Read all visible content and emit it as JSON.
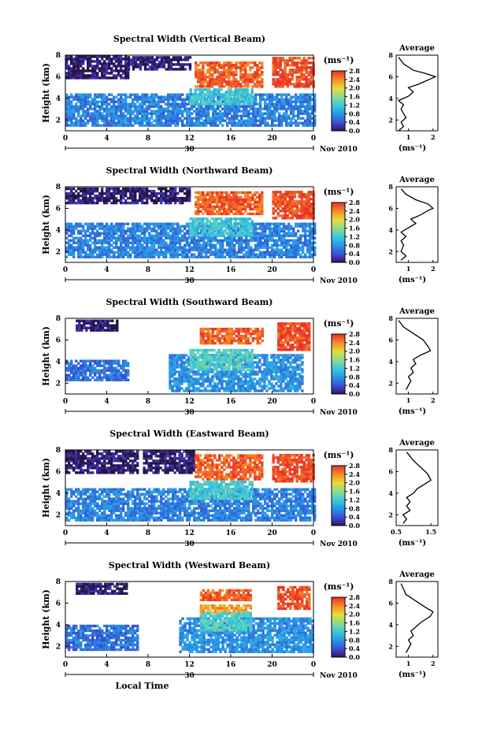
{
  "figure": {
    "xlabel": "Local Time",
    "date_day": "30",
    "date_month": "Nov 2010",
    "ylabel": "Height (km)",
    "colorbar_unit": "(ms⁻¹)",
    "avg_title": "Average",
    "avg_xlabel": "(ms⁻¹)"
  },
  "chart_data": [
    {
      "type": "heatmap",
      "title": "Spectral Width (Vertical Beam)",
      "xlabel": "",
      "ylabel": "Height (km)",
      "x_ticks": [
        "0",
        "4",
        "8",
        "12",
        "16",
        "20",
        "0"
      ],
      "y_ticks": [
        "2",
        "4",
        "6",
        "8"
      ],
      "xlim": [
        0,
        24
      ],
      "ylim": [
        1,
        8
      ],
      "colorbar": {
        "ticks": [
          "0.0",
          "0.4",
          "0.8",
          "1.2",
          "1.6",
          "2.0",
          "2.4",
          "2.8"
        ],
        "range": [
          0,
          2.8
        ]
      },
      "regions": [
        {
          "t0": 0,
          "t1": 6,
          "h0": 5.8,
          "h1": 7.8,
          "v": 0.05
        },
        {
          "t0": 6,
          "t1": 12,
          "h0": 6.6,
          "h1": 7.8,
          "v": 0.05
        },
        {
          "t0": 12.5,
          "t1": 19,
          "h0": 5.0,
          "h1": 7.3,
          "v": 2.6
        },
        {
          "t0": 20,
          "t1": 24,
          "h0": 5.0,
          "h1": 7.7,
          "v": 2.7
        },
        {
          "t0": 0,
          "t1": 24,
          "h0": 1.4,
          "h1": 4.4,
          "v": 0.7
        },
        {
          "t0": 12,
          "t1": 18,
          "h0": 3.4,
          "h1": 4.8,
          "v": 1.2
        }
      ]
    },
    {
      "type": "heatmap",
      "title": "Spectral Width (Northward Beam)",
      "xlabel": "",
      "ylabel": "Height (km)",
      "x_ticks": [
        "0",
        "4",
        "8",
        "12",
        "16",
        "20",
        "0"
      ],
      "y_ticks": [
        "2",
        "4",
        "6",
        "8"
      ],
      "xlim": [
        0,
        24
      ],
      "ylim": [
        1,
        8
      ],
      "colorbar": {
        "ticks": [
          "0.0",
          "0.4",
          "0.8",
          "1.2",
          "1.6",
          "2.0",
          "2.4",
          "2.8"
        ],
        "range": [
          0,
          2.8
        ]
      },
      "regions": [
        {
          "t0": 0,
          "t1": 12,
          "h0": 6.4,
          "h1": 7.8,
          "v": 0.05
        },
        {
          "t0": 12.5,
          "t1": 19,
          "h0": 5.4,
          "h1": 7.4,
          "v": 2.6
        },
        {
          "t0": 20,
          "t1": 24,
          "h0": 5.0,
          "h1": 7.6,
          "v": 2.7
        },
        {
          "t0": 0,
          "t1": 24,
          "h0": 1.4,
          "h1": 4.6,
          "v": 0.7
        },
        {
          "t0": 12,
          "t1": 18,
          "h0": 3.4,
          "h1": 5.0,
          "v": 1.2
        }
      ]
    },
    {
      "type": "heatmap",
      "title": "Spectral Width (Southward Beam)",
      "xlabel": "",
      "ylabel": "Height (km)",
      "x_ticks": [
        "0",
        "4",
        "8",
        "12",
        "16",
        "20",
        "0"
      ],
      "y_ticks": [
        "2",
        "4",
        "6",
        "8"
      ],
      "xlim": [
        0,
        24
      ],
      "ylim": [
        1,
        8
      ],
      "colorbar": {
        "ticks": [
          "0.0",
          "0.4",
          "0.8",
          "1.2",
          "1.6",
          "2.0",
          "2.4",
          "2.8"
        ],
        "range": [
          0,
          2.8
        ]
      },
      "regions": [
        {
          "t0": 1,
          "t1": 5,
          "h0": 6.8,
          "h1": 7.8,
          "v": 0.05
        },
        {
          "t0": 13,
          "t1": 19,
          "h0": 5.6,
          "h1": 7.0,
          "v": 2.6
        },
        {
          "t0": 20.5,
          "t1": 23.5,
          "h0": 5.0,
          "h1": 7.5,
          "v": 2.7
        },
        {
          "t0": 0,
          "t1": 6,
          "h0": 2.2,
          "h1": 4.0,
          "v": 0.6
        },
        {
          "t0": 10,
          "t1": 23,
          "h0": 1.2,
          "h1": 4.6,
          "v": 0.8
        },
        {
          "t0": 12,
          "t1": 18,
          "h0": 3.2,
          "h1": 5.0,
          "v": 1.3
        }
      ]
    },
    {
      "type": "heatmap",
      "title": "Spectral Width (Eastward Beam)",
      "xlabel": "",
      "ylabel": "Height (km)",
      "x_ticks": [
        "0",
        "4",
        "8",
        "12",
        "16",
        "20",
        "0"
      ],
      "y_ticks": [
        "2",
        "4",
        "6",
        "8"
      ],
      "xlim": [
        0,
        24
      ],
      "ylim": [
        1,
        8
      ],
      "colorbar": {
        "ticks": [
          "0.0",
          "0.4",
          "0.8",
          "1.2",
          "1.6",
          "2.0",
          "2.4",
          "2.8"
        ],
        "range": [
          0,
          2.8
        ]
      },
      "regions": [
        {
          "t0": 0,
          "t1": 7,
          "h0": 5.8,
          "h1": 7.8,
          "v": 0.05
        },
        {
          "t0": 7.5,
          "t1": 12.5,
          "h0": 5.8,
          "h1": 7.8,
          "v": 0.05
        },
        {
          "t0": 12.5,
          "t1": 19,
          "h0": 5.2,
          "h1": 7.6,
          "v": 2.6
        },
        {
          "t0": 20,
          "t1": 24,
          "h0": 5.0,
          "h1": 7.6,
          "v": 2.7
        },
        {
          "t0": 0,
          "t1": 24,
          "h0": 1.4,
          "h1": 4.4,
          "v": 0.7
        },
        {
          "t0": 12,
          "t1": 18,
          "h0": 3.4,
          "h1": 5.0,
          "v": 1.2
        }
      ]
    },
    {
      "type": "heatmap",
      "title": "Spectral Width (Westward Beam)",
      "xlabel": "Local Time",
      "ylabel": "Height (km)",
      "x_ticks": [
        "0",
        "4",
        "8",
        "12",
        "16",
        "20",
        "0"
      ],
      "y_ticks": [
        "2",
        "4",
        "6",
        "8"
      ],
      "xlim": [
        0,
        24
      ],
      "ylim": [
        1,
        8
      ],
      "colorbar": {
        "ticks": [
          "0.0",
          "0.4",
          "0.8",
          "1.2",
          "1.6",
          "2.0",
          "2.4",
          "2.8"
        ],
        "range": [
          0,
          2.8
        ]
      },
      "regions": [
        {
          "t0": 1,
          "t1": 6,
          "h0": 6.8,
          "h1": 7.8,
          "v": 0.05
        },
        {
          "t0": 13,
          "t1": 18,
          "h0": 6.2,
          "h1": 7.2,
          "v": 2.6
        },
        {
          "t0": 13,
          "t1": 18,
          "h0": 5.0,
          "h1": 5.8,
          "v": 2.3
        },
        {
          "t0": 20.5,
          "t1": 23.5,
          "h0": 5.4,
          "h1": 7.4,
          "v": 2.7
        },
        {
          "t0": 0,
          "t1": 7,
          "h0": 1.6,
          "h1": 4.0,
          "v": 0.6
        },
        {
          "t0": 11,
          "t1": 24,
          "h0": 1.4,
          "h1": 4.6,
          "v": 0.8
        },
        {
          "t0": 13,
          "t1": 18,
          "h0": 3.4,
          "h1": 5.0,
          "v": 1.3
        }
      ]
    },
    {
      "type": "line",
      "title": "Average",
      "xlabel": "(ms⁻¹)",
      "x_ticks": [
        "1",
        "2"
      ],
      "y_ticks": [
        "2",
        "4",
        "6",
        "8"
      ],
      "xlim": [
        0.5,
        2.2
      ],
      "ylim": [
        1,
        8
      ],
      "x": [
        0.6,
        0.8,
        0.7,
        0.9,
        0.8,
        0.7,
        0.8,
        0.6,
        1.0,
        1.2,
        1.0,
        1.4,
        1.7,
        1.9,
        2.1,
        1.7,
        1.2,
        0.8,
        0.6
      ],
      "y": [
        1.0,
        1.4,
        1.8,
        2.2,
        2.6,
        3.0,
        3.4,
        3.8,
        4.2,
        4.6,
        5.0,
        5.3,
        5.6,
        5.8,
        6.0,
        6.3,
        6.6,
        7.2,
        7.8
      ]
    },
    {
      "type": "line",
      "title": "Average",
      "xlabel": "(ms⁻¹)",
      "x_ticks": [
        "1",
        "2"
      ],
      "y_ticks": [
        "2",
        "4",
        "6",
        "8"
      ],
      "xlim": [
        0.5,
        2.2
      ],
      "ylim": [
        1,
        8
      ],
      "x": [
        0.7,
        0.9,
        0.7,
        0.8,
        0.7,
        0.9,
        0.7,
        1.0,
        1.3,
        1.1,
        1.5,
        1.8,
        2.0,
        1.8,
        1.3,
        0.9,
        0.7
      ],
      "y": [
        1.2,
        1.6,
        2.0,
        2.6,
        3.0,
        3.4,
        3.8,
        4.2,
        4.6,
        5.0,
        5.4,
        5.8,
        6.0,
        6.4,
        6.8,
        7.3,
        7.8
      ]
    },
    {
      "type": "line",
      "title": "Average",
      "xlabel": "(ms⁻¹)",
      "x_ticks": [
        "1",
        "2"
      ],
      "y_ticks": [
        "2",
        "4",
        "6",
        "8"
      ],
      "xlim": [
        0.5,
        2.2
      ],
      "ylim": [
        1,
        8
      ],
      "x": [
        0.9,
        1.0,
        1.1,
        1.0,
        1.2,
        1.1,
        1.3,
        1.2,
        1.5,
        1.9,
        1.8,
        1.6,
        1.2,
        0.8,
        0.6
      ],
      "y": [
        1.4,
        1.8,
        2.2,
        2.6,
        3.0,
        3.4,
        3.8,
        4.2,
        4.6,
        5.0,
        5.4,
        6.0,
        6.6,
        7.2,
        7.8
      ]
    },
    {
      "type": "line",
      "title": "Average",
      "xlabel": "(ms⁻¹)",
      "x_ticks": [
        "0.5",
        "1.5"
      ],
      "y_ticks": [
        "2",
        "4",
        "6",
        "8"
      ],
      "xlim": [
        0.5,
        1.7
      ],
      "ylim": [
        1,
        8
      ],
      "x": [
        0.7,
        0.8,
        0.7,
        0.9,
        0.8,
        0.9,
        0.8,
        1.0,
        1.1,
        1.3,
        1.5,
        1.4,
        1.2,
        1.0,
        0.8
      ],
      "y": [
        1.2,
        1.6,
        2.0,
        2.4,
        2.8,
        3.2,
        3.6,
        4.0,
        4.4,
        4.8,
        5.2,
        5.8,
        6.4,
        7.0,
        7.8
      ]
    },
    {
      "type": "line",
      "title": "Average",
      "xlabel": "(ms⁻¹)",
      "x_ticks": [
        "1",
        "2"
      ],
      "y_ticks": [
        "2",
        "4",
        "6",
        "8"
      ],
      "xlim": [
        0.5,
        2.2
      ],
      "ylim": [
        1,
        8
      ],
      "x": [
        0.9,
        1.0,
        1.1,
        1.0,
        1.2,
        1.1,
        1.3,
        1.5,
        1.9,
        2.0,
        1.7,
        1.3,
        0.9,
        0.7
      ],
      "y": [
        1.4,
        1.8,
        2.2,
        2.6,
        3.0,
        3.4,
        3.8,
        4.2,
        4.8,
        5.2,
        5.6,
        6.2,
        6.8,
        7.8
      ]
    }
  ]
}
